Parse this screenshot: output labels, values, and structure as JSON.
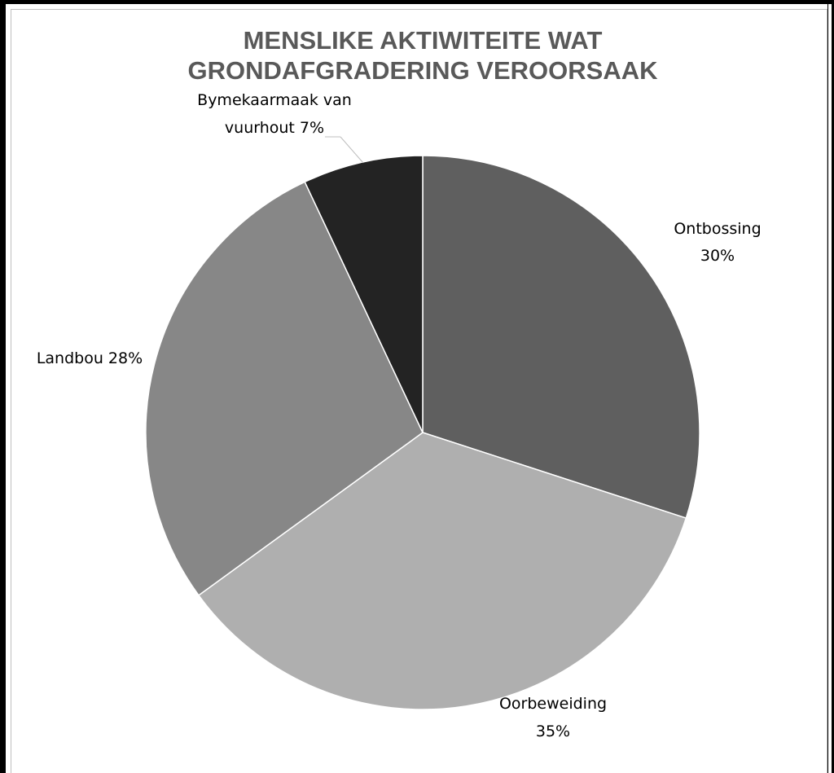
{
  "chart_data": {
    "type": "pie",
    "title_lines": [
      "MENSLIKE AKTIWITEITE WAT",
      "GRONDAFGRADERING VEROORSAAK"
    ],
    "slices": [
      {
        "label_lines": [
          "Ontbossing",
          "30%"
        ],
        "value": 30,
        "color": "#5f5f5f"
      },
      {
        "label_lines": [
          "Oorbeweiding",
          "35%"
        ],
        "value": 35,
        "color": "#afafaf"
      },
      {
        "label_lines": [
          "Landbou 28%"
        ],
        "value": 28,
        "color": "#878787"
      },
      {
        "label_lines": [
          "Bymekaarmaak van",
          "vuurhout 7%"
        ],
        "value": 7,
        "color": "#232323"
      }
    ],
    "start_angle_deg": 0,
    "direction": "clockwise",
    "legend": "none"
  }
}
